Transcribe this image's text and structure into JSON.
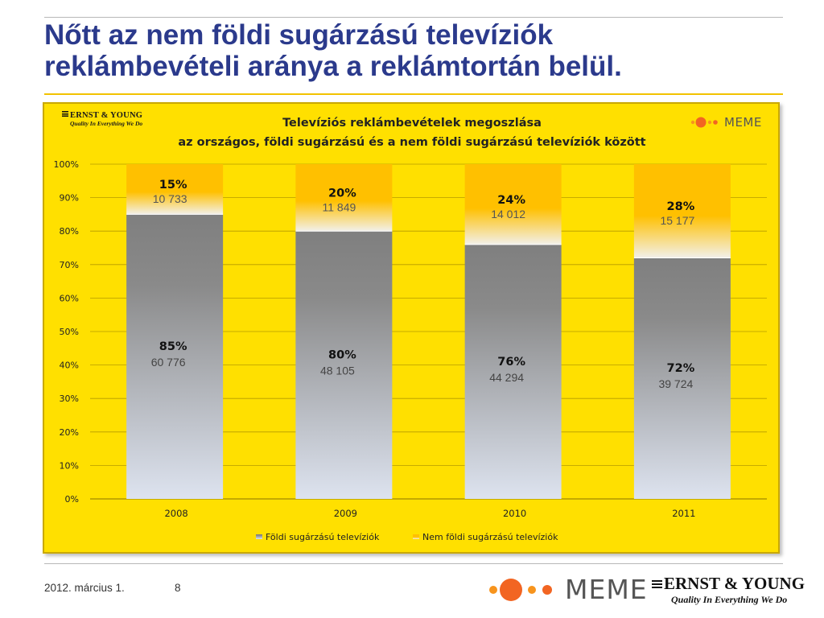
{
  "slide": {
    "title_line1": "Nőtt az nem földi sugárzású televíziók",
    "title_line2": "reklámbevételi aránya a reklámtortán belül.",
    "footer_date": "2012. március 1.",
    "page_number": "8"
  },
  "logos": {
    "ey_brand": "ERNST & YOUNG",
    "ey_tagline": "Quality In Everything We Do",
    "meme_word": "MEME"
  },
  "colors": {
    "background": "#ffe000",
    "accent_orange": "#f7941d",
    "title_blue": "#2b3a8c",
    "series_foldi": "#808080",
    "series_nem_foldi": "#ffc000"
  },
  "chart_data": {
    "type": "bar",
    "stacked": true,
    "title_line1": "Televíziós reklámbevételek megoszlása",
    "title_line2": "az országos, földi sugárzású és a nem földi sugárzású televíziók között",
    "categories": [
      "2008",
      "2009",
      "2010",
      "2011"
    ],
    "ylim": [
      0,
      100
    ],
    "yticks": [
      "0%",
      "10%",
      "20%",
      "30%",
      "40%",
      "50%",
      "60%",
      "70%",
      "80%",
      "90%",
      "100%"
    ],
    "grid": true,
    "legend_position": "bottom",
    "series": [
      {
        "name": "Földi sugárzású televíziók",
        "values": [
          85,
          80,
          76,
          72
        ],
        "labels": [
          "85%",
          "80%",
          "76%",
          "72%"
        ],
        "amounts": [
          "60 776",
          "48 105",
          "44 294",
          "39 724"
        ]
      },
      {
        "name": "Nem földi sugárzású televíziók",
        "values": [
          15,
          20,
          24,
          28
        ],
        "labels": [
          "15%",
          "20%",
          "24%",
          "28%"
        ],
        "amounts": [
          "10 733",
          "11 849",
          "14 012",
          "15 177"
        ]
      }
    ]
  }
}
